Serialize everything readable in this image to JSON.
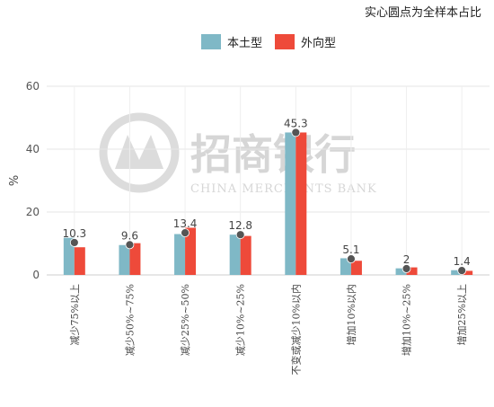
{
  "chart_data": {
    "type": "bar",
    "note": "实心圆点为全样本占比",
    "ylabel": "%",
    "ylim": [
      0,
      60
    ],
    "yticks": [
      0,
      20,
      40,
      60
    ],
    "grid": true,
    "legend_position": "top-center",
    "categories": [
      "减少75%以上",
      "减少50%~75%",
      "减少25%~50%",
      "减少10%~25%",
      "不变或减少10%以内",
      "增加10%以内",
      "增加10%~25%",
      "增加25%以上"
    ],
    "series": [
      {
        "name": "本土型",
        "color": "#7fb8c6",
        "values": [
          11.8,
          9.5,
          13.0,
          12.8,
          45.3,
          5.3,
          2.1,
          1.5
        ]
      },
      {
        "name": "外向型",
        "color": "#ee4a3a",
        "values": [
          8.8,
          10.1,
          15.0,
          12.4,
          45.3,
          4.5,
          2.4,
          1.3
        ]
      }
    ],
    "points": {
      "color": "#555555",
      "values": [
        10.3,
        9.6,
        13.4,
        12.8,
        45.3,
        5.1,
        2,
        1.4
      ],
      "labels": [
        "10.3",
        "9.6",
        "13.4",
        "12.8",
        "45.3",
        "5.1",
        "2",
        "1.4"
      ]
    }
  },
  "watermark": {
    "text": "招商银行",
    "subtext": "CHINA MERCHANTS BANK"
  }
}
